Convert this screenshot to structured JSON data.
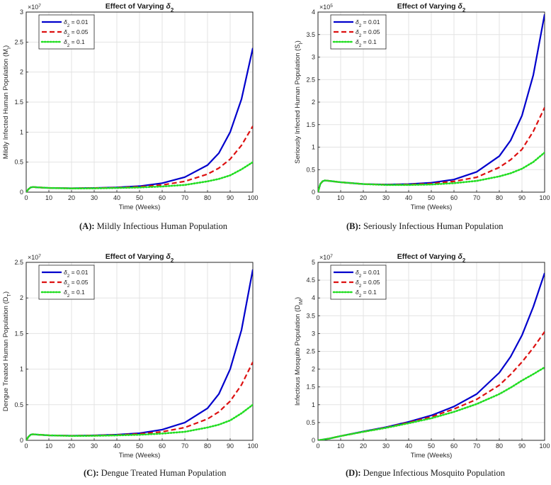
{
  "chart_data": [
    {
      "type": "line",
      "title": "Effect of Varying δ2",
      "xlabel": "Time (Weeks)",
      "ylabel": "Mildly Infected Human Population (M_I)",
      "exponent": "×10^7",
      "xlim": [
        0,
        100
      ],
      "ylim": [
        0,
        3
      ],
      "xticks": [
        "0",
        "10",
        "20",
        "30",
        "40",
        "50",
        "60",
        "70",
        "80",
        "90",
        "100"
      ],
      "yticks": [
        "0",
        "0.5",
        "1",
        "1.5",
        "2",
        "2.5",
        "3"
      ],
      "x": [
        0,
        1,
        2,
        3,
        4,
        5,
        10,
        20,
        30,
        40,
        50,
        60,
        70,
        80,
        85,
        90,
        95,
        100
      ],
      "series": [
        {
          "name": "δ2 = 0.01",
          "color": "#0000cc",
          "style": "solid",
          "values": [
            0,
            0.05,
            0.08,
            0.085,
            0.083,
            0.08,
            0.07,
            0.065,
            0.07,
            0.08,
            0.1,
            0.15,
            0.25,
            0.45,
            0.65,
            1.0,
            1.55,
            2.4
          ]
        },
        {
          "name": "δ2 = 0.05",
          "color": "#dd1111",
          "style": "dash",
          "values": [
            0,
            0.05,
            0.08,
            0.085,
            0.083,
            0.08,
            0.07,
            0.064,
            0.068,
            0.075,
            0.09,
            0.12,
            0.18,
            0.3,
            0.4,
            0.55,
            0.78,
            1.1
          ]
        },
        {
          "name": "δ2 = 0.1",
          "color": "#22dd22",
          "style": "dot",
          "values": [
            0,
            0.05,
            0.08,
            0.085,
            0.083,
            0.08,
            0.07,
            0.062,
            0.064,
            0.07,
            0.078,
            0.095,
            0.12,
            0.18,
            0.22,
            0.28,
            0.38,
            0.5
          ]
        }
      ]
    },
    {
      "type": "line",
      "title": "Effect of Varying δ2",
      "xlabel": "Time (Weeks)",
      "ylabel": "Seriously Infected Human Population (S_I)",
      "exponent": "×10^5",
      "xlim": [
        0,
        100
      ],
      "ylim": [
        0,
        4
      ],
      "xticks": [
        "0",
        "10",
        "20",
        "30",
        "40",
        "50",
        "60",
        "70",
        "80",
        "90",
        "100"
      ],
      "yticks": [
        "0",
        "0.5",
        "1",
        "1.5",
        "2",
        "2.5",
        "3",
        "3.5",
        "4"
      ],
      "x": [
        0,
        1,
        2,
        3,
        4,
        5,
        10,
        20,
        30,
        40,
        50,
        60,
        70,
        80,
        85,
        90,
        95,
        100
      ],
      "series": [
        {
          "name": "δ2 = 0.01",
          "color": "#0000cc",
          "style": "solid",
          "values": [
            0,
            0.18,
            0.24,
            0.26,
            0.255,
            0.25,
            0.22,
            0.18,
            0.17,
            0.18,
            0.21,
            0.28,
            0.45,
            0.8,
            1.15,
            1.7,
            2.6,
            3.95
          ]
        },
        {
          "name": "δ2 = 0.05",
          "color": "#dd1111",
          "style": "dash",
          "values": [
            0,
            0.18,
            0.24,
            0.26,
            0.255,
            0.25,
            0.22,
            0.18,
            0.165,
            0.17,
            0.19,
            0.24,
            0.33,
            0.55,
            0.72,
            0.95,
            1.35,
            1.88
          ]
        },
        {
          "name": "δ2 = 0.1",
          "color": "#22dd22",
          "style": "dot",
          "values": [
            0,
            0.18,
            0.24,
            0.26,
            0.255,
            0.25,
            0.22,
            0.18,
            0.16,
            0.16,
            0.17,
            0.2,
            0.25,
            0.35,
            0.42,
            0.52,
            0.67,
            0.88
          ]
        }
      ]
    },
    {
      "type": "line",
      "title": "Effect of Varying δ2",
      "xlabel": "Time (Weeks)",
      "ylabel": "Dengue Treated Human Population (D_T)",
      "exponent": "×10^7",
      "xlim": [
        0,
        100
      ],
      "ylim": [
        0,
        2.5
      ],
      "xticks": [
        "0",
        "10",
        "20",
        "30",
        "40",
        "50",
        "60",
        "70",
        "80",
        "90",
        "100"
      ],
      "yticks": [
        "0",
        "0.5",
        "1",
        "1.5",
        "2",
        "2.5"
      ],
      "x": [
        0,
        1,
        2,
        3,
        4,
        5,
        10,
        20,
        30,
        40,
        50,
        60,
        70,
        80,
        85,
        90,
        95,
        100
      ],
      "series": [
        {
          "name": "δ2 = 0.01",
          "color": "#0000cc",
          "style": "solid",
          "values": [
            0,
            0.05,
            0.08,
            0.085,
            0.083,
            0.08,
            0.07,
            0.065,
            0.07,
            0.08,
            0.1,
            0.15,
            0.25,
            0.45,
            0.65,
            1.0,
            1.55,
            2.4
          ]
        },
        {
          "name": "δ2 = 0.05",
          "color": "#dd1111",
          "style": "dash",
          "values": [
            0,
            0.05,
            0.08,
            0.085,
            0.083,
            0.08,
            0.07,
            0.064,
            0.068,
            0.075,
            0.09,
            0.12,
            0.18,
            0.3,
            0.4,
            0.55,
            0.78,
            1.1
          ]
        },
        {
          "name": "δ2 = 0.1",
          "color": "#22dd22",
          "style": "dot",
          "values": [
            0,
            0.05,
            0.08,
            0.085,
            0.083,
            0.08,
            0.07,
            0.062,
            0.064,
            0.07,
            0.078,
            0.095,
            0.12,
            0.18,
            0.22,
            0.28,
            0.38,
            0.5
          ]
        }
      ]
    },
    {
      "type": "line",
      "title": "Effect of Varying δ2",
      "xlabel": "Time (Weeks)",
      "ylabel": "Infectious Mosquito Population (D_IM)",
      "exponent": "×10^7",
      "xlim": [
        0,
        100
      ],
      "ylim": [
        0,
        5
      ],
      "xticks": [
        "0",
        "10",
        "20",
        "30",
        "40",
        "50",
        "60",
        "70",
        "80",
        "90",
        "100"
      ],
      "yticks": [
        "0",
        "0.5",
        "1",
        "1.5",
        "2",
        "2.5",
        "3",
        "3.5",
        "4",
        "4.5",
        "5"
      ],
      "x": [
        0,
        5,
        10,
        20,
        30,
        40,
        50,
        60,
        70,
        80,
        85,
        90,
        95,
        100
      ],
      "series": [
        {
          "name": "δ2 = 0.01",
          "color": "#0000cc",
          "style": "solid",
          "values": [
            0,
            0.05,
            0.12,
            0.25,
            0.37,
            0.52,
            0.7,
            0.95,
            1.3,
            1.9,
            2.35,
            2.95,
            3.75,
            4.7
          ]
        },
        {
          "name": "δ2 = 0.05",
          "color": "#dd1111",
          "style": "dash",
          "values": [
            0,
            0.05,
            0.12,
            0.24,
            0.36,
            0.5,
            0.66,
            0.88,
            1.15,
            1.55,
            1.85,
            2.2,
            2.6,
            3.05
          ]
        },
        {
          "name": "δ2 = 0.1",
          "color": "#22dd22",
          "style": "dot",
          "values": [
            0,
            0.05,
            0.12,
            0.24,
            0.35,
            0.48,
            0.62,
            0.8,
            1.02,
            1.3,
            1.48,
            1.68,
            1.86,
            2.05
          ]
        }
      ]
    }
  ],
  "captions": [
    {
      "tag": "(A):",
      "text": " Mildly Infectious Human Population"
    },
    {
      "tag": "(B):",
      "text": " Seriously Infectious Human Population"
    },
    {
      "tag": "(C):",
      "text": " Dengue Treated Human Population"
    },
    {
      "tag": "(D):",
      "text": " Dengue Infectious Mosquito Population"
    }
  ]
}
